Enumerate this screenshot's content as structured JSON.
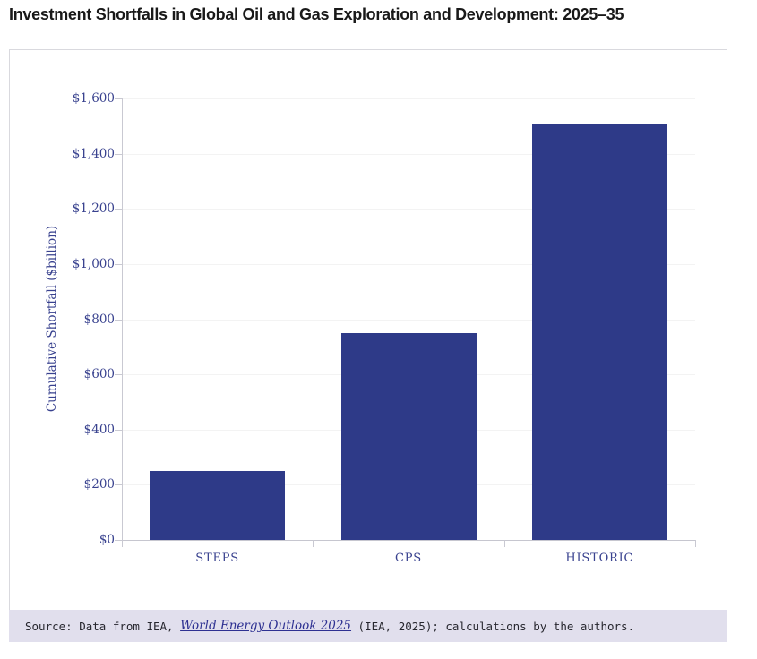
{
  "page": {
    "title": "Investment Shortfalls in Global Oil and Gas Exploration and Development: 2025–35"
  },
  "chart_data": {
    "type": "bar",
    "title": "Investment Shortfalls in Global Oil and Gas Exploration and Development: 2025–35",
    "categories": [
      "STEPS",
      "CPS",
      "HISTORIC"
    ],
    "values": [
      250,
      750,
      1510
    ],
    "xlabel": "",
    "ylabel": "Cumulative Shortfall ($billion)",
    "ylim": [
      0,
      1600
    ],
    "ytick_step": 200,
    "ytick_labels": [
      "$0",
      "$200",
      "$400",
      "$600",
      "$800",
      "$1,000",
      "$1,200",
      "$1,400",
      "$1,600"
    ],
    "grid": true,
    "legend": "none",
    "bar_color": "#2e3a88"
  },
  "source": {
    "prefix": "Source: Data from IEA, ",
    "link": "World Energy Outlook 2025",
    "suffix": " (IEA, 2025); calculations by the authors."
  },
  "colors": {
    "bar": "#2e3a88",
    "axis_text": "#39428f",
    "gridline": "#f3f3f3",
    "axis_line": "#c9c9d2",
    "source_background": "#e1dfed",
    "link": "#2e3192",
    "title_text": "#191919"
  }
}
